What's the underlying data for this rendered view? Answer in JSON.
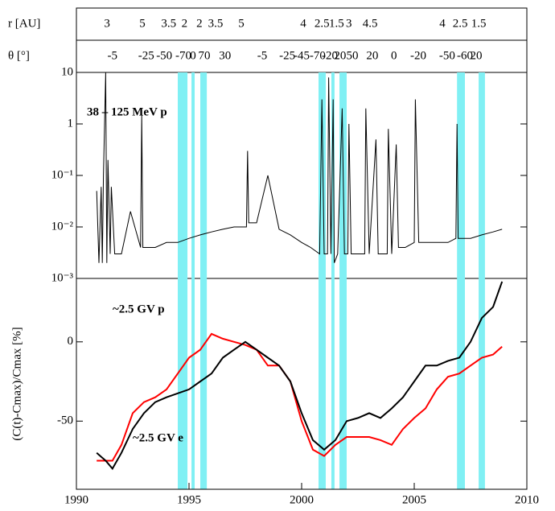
{
  "chart_data": [
    {
      "type": "axes",
      "xlim": [
        1990,
        2010
      ],
      "rows": [
        {
          "label": "r [AU]",
          "ticks": [
            {
              "value": 1991.36,
              "label": "3"
            },
            {
              "value": 1992.93,
              "label": "5"
            },
            {
              "value": 1994.1,
              "label": "3.5"
            },
            {
              "value": 1994.8,
              "label": "2"
            },
            {
              "value": 1995.46,
              "label": "2"
            },
            {
              "value": 1996.18,
              "label": "3.5"
            },
            {
              "value": 1997.32,
              "label": "5"
            },
            {
              "value": 2000.07,
              "label": "4"
            },
            {
              "value": 2000.9,
              "label": "2.5"
            },
            {
              "value": 2001.55,
              "label": "1.5"
            },
            {
              "value": 2002.1,
              "label": "3"
            },
            {
              "value": 2003.04,
              "label": "4.5"
            },
            {
              "value": 2006.25,
              "label": "4"
            },
            {
              "value": 2007.04,
              "label": "2.5"
            },
            {
              "value": 2007.86,
              "label": "1.5"
            }
          ]
        },
        {
          "label": "θ [°]",
          "ticks": [
            {
              "value": 1991.6,
              "label": "-5"
            },
            {
              "value": 1993.1,
              "label": "-25"
            },
            {
              "value": 1993.9,
              "label": "-50"
            },
            {
              "value": 1994.75,
              "label": "-70"
            },
            {
              "value": 1995.18,
              "label": "0"
            },
            {
              "value": 1995.68,
              "label": "70"
            },
            {
              "value": 1996.6,
              "label": "30"
            },
            {
              "value": 1998.25,
              "label": "-5"
            },
            {
              "value": 1999.36,
              "label": "-25"
            },
            {
              "value": 2000.0,
              "label": "-45"
            },
            {
              "value": 2000.71,
              "label": "-70"
            },
            {
              "value": 2001.25,
              "label": "-20"
            },
            {
              "value": 2001.71,
              "label": "20"
            },
            {
              "value": 2002.25,
              "label": "50"
            },
            {
              "value": 2003.14,
              "label": "20"
            },
            {
              "value": 2004.1,
              "label": "0"
            },
            {
              "value": 2005.18,
              "label": "-20"
            },
            {
              "value": 2006.46,
              "label": "-50"
            },
            {
              "value": 2007.25,
              "label": "-60"
            },
            {
              "value": 2007.75,
              "label": "20"
            }
          ]
        }
      ]
    },
    {
      "type": "line",
      "annotation": "38 – 125 MeV p",
      "log_y": true,
      "color": "#000000",
      "xlim": [
        1990,
        2010
      ],
      "ylim": [
        0.001,
        10
      ],
      "yticks": [
        {
          "value": 0.001,
          "label": "10⁻³"
        },
        {
          "value": 0.01,
          "label": "10⁻²"
        },
        {
          "value": 0.1,
          "label": "10⁻¹"
        },
        1,
        10
      ],
      "bands": [
        [
          1994.5,
          1994.93
        ],
        [
          1995.11,
          1995.25
        ],
        [
          1995.5,
          1995.79
        ],
        [
          2000.75,
          2001.07
        ],
        [
          2001.32,
          2001.46
        ],
        [
          2001.68,
          2002.0
        ],
        [
          2006.9,
          2007.25
        ],
        [
          2007.86,
          2008.14
        ]
      ],
      "band_color": "#80f0f4",
      "x": [
        1990.9,
        1991.0,
        1991.1,
        1991.15,
        1991.2,
        1991.3,
        1991.35,
        1991.4,
        1991.5,
        1991.55,
        1991.7,
        1992.0,
        1992.4,
        1992.85,
        1992.9,
        1992.95,
        1993.5,
        1994.0,
        1994.5,
        1995.0,
        1995.5,
        1996.0,
        1996.5,
        1997.0,
        1997.55,
        1997.6,
        1997.65,
        1998.0,
        1998.5,
        1999.0,
        1999.5,
        2000.0,
        2000.4,
        2000.8,
        2000.9,
        2001.0,
        2001.15,
        2001.2,
        2001.3,
        2001.4,
        2001.45,
        2001.6,
        2001.8,
        2001.9,
        2002.05,
        2002.1,
        2002.2,
        2002.5,
        2002.8,
        2002.85,
        2003.0,
        2003.3,
        2003.4,
        2003.8,
        2003.85,
        2004.0,
        2004.2,
        2004.3,
        2004.6,
        2005.0,
        2005.05,
        2005.2,
        2005.6,
        2006.0,
        2006.5,
        2006.85,
        2006.9,
        2006.95,
        2007.5,
        2008.0,
        2008.5,
        2008.9
      ],
      "values": [
        0.05,
        0.002,
        0.06,
        0.002,
        0.1,
        10,
        0.002,
        0.2,
        0.003,
        0.06,
        0.003,
        0.003,
        0.02,
        0.004,
        1.5,
        0.004,
        0.004,
        0.005,
        0.005,
        0.006,
        0.007,
        0.008,
        0.009,
        0.01,
        0.01,
        0.3,
        0.012,
        0.012,
        0.1,
        0.009,
        0.007,
        0.005,
        0.004,
        0.003,
        3,
        0.003,
        0.003,
        8,
        0.003,
        3,
        0.002,
        0.003,
        2,
        0.003,
        0.003,
        1,
        0.003,
        0.003,
        0.003,
        2,
        0.003,
        0.5,
        0.003,
        0.003,
        0.8,
        0.003,
        0.4,
        0.004,
        0.004,
        0.005,
        3,
        0.005,
        0.005,
        0.005,
        0.005,
        0.006,
        1,
        0.006,
        0.006,
        0.007,
        0.008,
        0.009
      ]
    },
    {
      "type": "line",
      "ylabel": "(C(t)-Cmax)/Cmax [%]",
      "xlim": [
        1990,
        2010
      ],
      "ylim": [
        -93,
        40
      ],
      "yticks": [
        -50,
        0
      ],
      "xticks": [
        1990,
        1995,
        2000,
        2005,
        2010
      ],
      "x": [
        1990.9,
        1991.3,
        1991.6,
        1992,
        1992.5,
        1993,
        1993.5,
        1994,
        1995,
        1995.5,
        1996,
        1996.5,
        1997,
        1997.5,
        1998,
        1998.5,
        1999,
        1999.5,
        2000,
        2000.5,
        2001,
        2001.5,
        2002,
        2002.5,
        2003,
        2003.5,
        2004,
        2004.5,
        2005,
        2005.5,
        2006,
        2006.5,
        2007,
        2007.5,
        2008,
        2008.5,
        2008.9
      ],
      "series": [
        {
          "name": "~2.5 GV p",
          "color": "#ff0000",
          "values": [
            -75,
            -75,
            -75,
            -65,
            -45,
            -38,
            -35,
            -30,
            -10,
            -5,
            5,
            2,
            0,
            -2,
            -5,
            -15,
            -15,
            -25,
            -50,
            -68,
            -72,
            -65,
            -60,
            -60,
            -60,
            -62,
            -65,
            -55,
            -48,
            -42,
            -30,
            -22,
            -20,
            -15,
            -10,
            -8,
            -3
          ]
        },
        {
          "name": "~2.5 GV e",
          "color": "#000000",
          "values": [
            -70,
            -75,
            -80,
            -70,
            -55,
            -45,
            -38,
            -35,
            -30,
            -25,
            -20,
            -10,
            -5,
            0,
            -5,
            -10,
            -15,
            -25,
            -45,
            -62,
            -68,
            -62,
            -50,
            -48,
            -45,
            -48,
            -42,
            -35,
            -25,
            -15,
            -15,
            -12,
            -10,
            0,
            15,
            22,
            38
          ]
        }
      ]
    }
  ]
}
